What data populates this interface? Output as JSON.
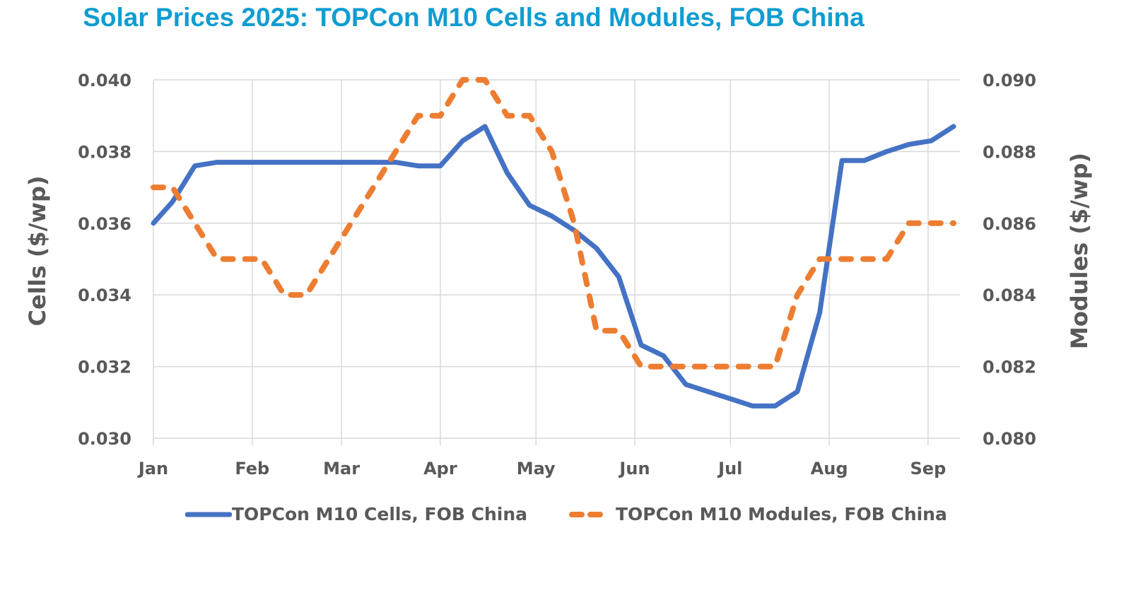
{
  "chart_data": {
    "type": "line",
    "title": "Solar Prices 2025: TOPCon M10 Cells and Modules, FOB China",
    "xlabel": "",
    "ylabel": "Cells ($/wp)",
    "y2label": "Modules ($/wp)",
    "ylim": [
      0.03,
      0.04
    ],
    "y2lim": [
      0.08,
      0.09
    ],
    "yticks": [
      "0.030",
      "0.032",
      "0.034",
      "0.036",
      "0.038",
      "0.040"
    ],
    "y2ticks": [
      "0.080",
      "0.082",
      "0.084",
      "0.086",
      "0.088",
      "0.090"
    ],
    "x_ticks": [
      {
        "label": "Jan",
        "day": 0
      },
      {
        "label": "Feb",
        "day": 31
      },
      {
        "label": "Mar",
        "day": 59
      },
      {
        "label": "Apr",
        "day": 90
      },
      {
        "label": "May",
        "day": 120
      },
      {
        "label": "Jun",
        "day": 151
      },
      {
        "label": "Jul",
        "day": 181
      },
      {
        "label": "Aug",
        "day": 212
      },
      {
        "label": "Sep",
        "day": 243
      }
    ],
    "x_range_days": [
      0,
      253
    ],
    "grid": true,
    "legend_position": "bottom",
    "x_days": [
      0,
      6,
      13,
      20,
      27,
      34,
      41,
      48,
      55,
      62,
      69,
      76,
      83,
      90,
      97,
      104,
      111,
      118,
      125,
      132,
      139,
      146,
      153,
      160,
      167,
      174,
      181,
      188,
      195,
      202,
      209,
      216,
      223,
      230,
      237,
      244,
      251
    ],
    "series": [
      {
        "name": "TOPCon M10 Cells, FOB China",
        "axis": "left",
        "color": "#4472c4",
        "style": "solid",
        "values": [
          0.036,
          0.0366,
          0.0376,
          0.0377,
          0.0377,
          0.0377,
          0.0377,
          0.0377,
          0.0377,
          0.0377,
          0.0377,
          0.0377,
          0.0376,
          0.0376,
          0.0383,
          0.0387,
          0.0374,
          0.0365,
          0.0362,
          0.0358,
          0.0353,
          0.0345,
          0.0326,
          0.0323,
          0.0315,
          0.0313,
          0.0311,
          0.0309,
          0.0309,
          0.0313,
          0.0335,
          0.03775,
          0.03775,
          0.038,
          0.0382,
          0.0383,
          0.0387
        ]
      },
      {
        "name": "TOPCon M10 Modules, FOB China",
        "axis": "right",
        "color": "#ed7d31",
        "style": "dashed",
        "values": [
          0.087,
          0.087,
          0.086,
          0.085,
          0.085,
          0.085,
          0.084,
          0.084,
          0.085,
          0.086,
          0.087,
          0.088,
          0.089,
          0.089,
          0.09,
          0.09,
          0.089,
          0.089,
          0.088,
          0.086,
          0.083,
          0.083,
          0.082,
          0.082,
          0.082,
          0.082,
          0.082,
          0.082,
          0.082,
          0.084,
          0.085,
          0.085,
          0.085,
          0.085,
          0.086,
          0.086,
          0.086
        ]
      }
    ]
  }
}
